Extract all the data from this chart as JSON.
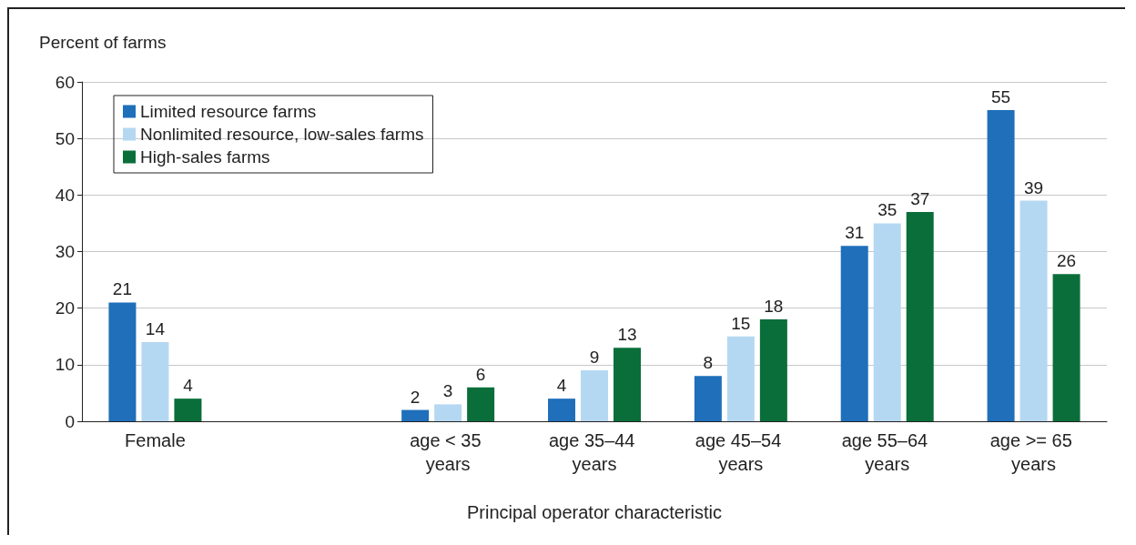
{
  "chart_data": {
    "type": "bar",
    "ylabel": "Percent of farms",
    "xlabel": "Principal operator characteristic",
    "categories": [
      "Female",
      null,
      "age < 35 years",
      "age 35–44 years",
      "age 45–54 years",
      "age 55–64 years",
      "age >= 65 years"
    ],
    "series": [
      {
        "name": "Limited resource farms",
        "color": "#1f6fba",
        "values": [
          21,
          null,
          2,
          4,
          8,
          31,
          55
        ]
      },
      {
        "name": "Nonlimited resource, low-sales farms",
        "color": "#b5d8f2",
        "values": [
          14,
          null,
          3,
          9,
          15,
          35,
          39
        ]
      },
      {
        "name": "High-sales farms",
        "color": "#0a6e3a",
        "values": [
          4,
          null,
          6,
          13,
          18,
          37,
          26
        ]
      }
    ],
    "ylim": [
      0,
      60
    ],
    "yticks": [
      0,
      10,
      20,
      30,
      40,
      50,
      60
    ],
    "grid": "y",
    "legend": "top left",
    "data_labels": true
  }
}
